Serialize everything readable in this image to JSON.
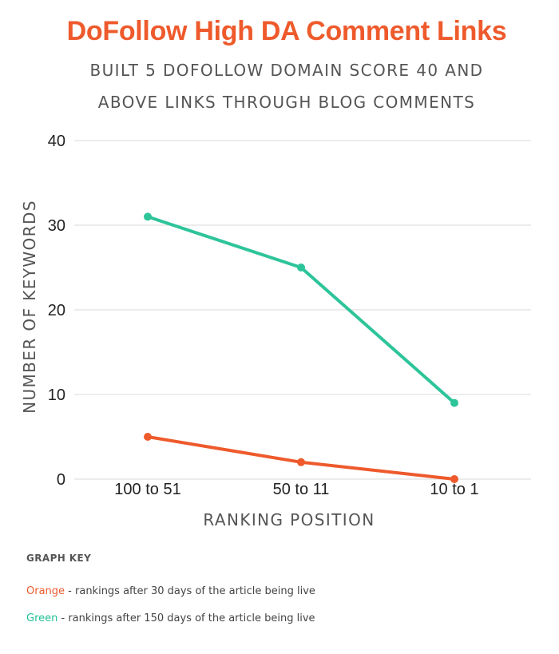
{
  "header": {
    "title": "DoFollow High DA Comment Links",
    "subtitle_line1": "BUILT 5 DOFOLLOW DOMAIN SCORE 40 AND",
    "subtitle_line2": "ABOVE LINKS THROUGH BLOG COMMENTS"
  },
  "colors": {
    "accent": "#ee5a2c",
    "orange_series": "#ee5a2c",
    "green_series": "#2ec49a",
    "gridline": "#d9d9d9",
    "axis_text": "#555555"
  },
  "chart_data": {
    "type": "line",
    "title": "",
    "xlabel": "RANKING POSITION",
    "ylabel": "NUMBER OF KEYWORDS",
    "categories": [
      "100 to 51",
      "50 to 11",
      "10 to 1"
    ],
    "yticks": [
      0,
      10,
      20,
      30,
      40
    ],
    "ylim": [
      0,
      40
    ],
    "grid": true,
    "series": [
      {
        "name": "",
        "color": "#2ec49a",
        "values": [
          31,
          25,
          9
        ]
      },
      {
        "name": "",
        "color": "#ee5a2c",
        "values": [
          5,
          2,
          0
        ]
      }
    ]
  },
  "graph_key": {
    "heading": "GRAPH KEY",
    "orange_word": "Orange",
    "orange_text": " - rankings after 30 days of the article being live",
    "green_word": "Green",
    "green_text": " - rankings after 150 days of the article being live"
  }
}
